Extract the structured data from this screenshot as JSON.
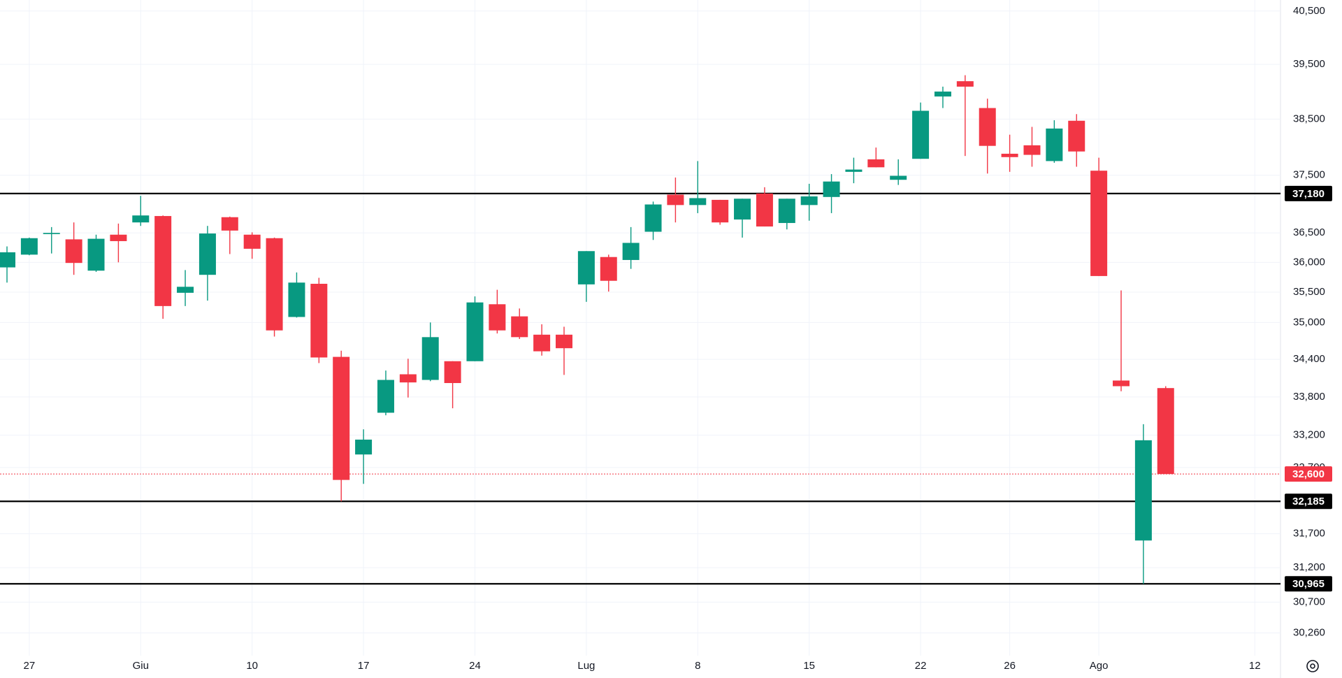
{
  "chart_data": {
    "type": "candlestick",
    "log_scale": true,
    "grid": true,
    "up_color": "#089981",
    "down_color": "#f23645",
    "categories": [
      null,
      "27",
      null,
      null,
      null,
      null,
      "Giu",
      null,
      null,
      null,
      null,
      "10",
      null,
      null,
      null,
      null,
      "17",
      null,
      null,
      null,
      null,
      "24",
      null,
      null,
      null,
      null,
      "Lug",
      null,
      null,
      null,
      null,
      "8",
      null,
      null,
      null,
      null,
      "15",
      null,
      null,
      null,
      null,
      "22",
      null,
      null,
      null,
      "26",
      null,
      null,
      null,
      "Ago",
      null,
      null,
      null,
      null,
      null,
      null,
      "12"
    ],
    "open": [
      35915,
      36130,
      36480,
      36390,
      35860,
      36470,
      36680,
      36790,
      35490,
      35790,
      36770,
      36470,
      36410,
      35090,
      35640,
      34440,
      32900,
      33550,
      34160,
      34070,
      34370,
      34370,
      35300,
      35100,
      34800,
      34800,
      35630,
      36090,
      36040,
      36520,
      37160,
      36980,
      37070,
      36730,
      37180,
      36670,
      36980,
      37120,
      37560,
      37780,
      37420,
      37790,
      38910,
      39190,
      38700,
      37880,
      38030,
      37750,
      38470,
      37580,
      34060,
      31600,
      33940,
      null,
      null,
      null,
      null
    ],
    "high": [
      36270,
      36420,
      36600,
      36680,
      36470,
      36660,
      37140,
      36800,
      35870,
      36620,
      36780,
      36510,
      36420,
      35830,
      35740,
      34540,
      33290,
      34220,
      34410,
      35000,
      34370,
      35430,
      35540,
      35230,
      34970,
      34930,
      36190,
      36130,
      36600,
      37040,
      37460,
      37750,
      37070,
      37090,
      37290,
      37090,
      37350,
      37520,
      37810,
      37990,
      37780,
      38800,
      39090,
      39300,
      38870,
      38220,
      38360,
      38480,
      38590,
      37810,
      35530,
      33370,
      33970,
      null,
      null,
      null,
      null
    ],
    "low": [
      35660,
      36120,
      36150,
      35790,
      35840,
      36000,
      36620,
      35060,
      35270,
      35360,
      36140,
      36060,
      34770,
      35080,
      34340,
      32185,
      32450,
      33510,
      33790,
      34050,
      33620,
      34370,
      34820,
      34730,
      34460,
      34150,
      35340,
      35510,
      35890,
      36380,
      36680,
      36840,
      36640,
      36420,
      36610,
      36560,
      36710,
      36840,
      37360,
      37640,
      37330,
      37790,
      38700,
      37840,
      37530,
      37560,
      37650,
      37720,
      37650,
      35770,
      33890,
      30965,
      32600,
      null,
      null,
      null,
      null
    ],
    "close": [
      36170,
      36410,
      36500,
      35990,
      36400,
      36360,
      36800,
      35270,
      35590,
      36490,
      36540,
      36230,
      34870,
      35660,
      34430,
      32510,
      33130,
      34070,
      34030,
      34760,
      34020,
      35330,
      34870,
      34760,
      34530,
      34580,
      36190,
      35690,
      36330,
      36990,
      36980,
      37100,
      36680,
      37090,
      36610,
      37090,
      37130,
      37390,
      37600,
      37640,
      37490,
      38650,
      39000,
      39090,
      38020,
      37820,
      37860,
      38330,
      37920,
      35770,
      33970,
      33120,
      32600,
      null,
      null,
      null,
      null
    ],
    "ylim": [
      29940,
      40710
    ],
    "yticks": [
      {
        "value": 40500,
        "label": "40,500"
      },
      {
        "value": 39500,
        "label": "39,500"
      },
      {
        "value": 38500,
        "label": "38,500"
      },
      {
        "value": 37500,
        "label": "37,500"
      },
      {
        "value": 36500,
        "label": "36,500"
      },
      {
        "value": 36000,
        "label": "36,000"
      },
      {
        "value": 35500,
        "label": "35,500"
      },
      {
        "value": 35000,
        "label": "35,000"
      },
      {
        "value": 34400,
        "label": "34,400"
      },
      {
        "value": 33800,
        "label": "33,800"
      },
      {
        "value": 33200,
        "label": "33,200"
      },
      {
        "value": 32700,
        "label": "32,700"
      },
      {
        "value": 31700,
        "label": "31,700"
      },
      {
        "value": 31200,
        "label": "31,200"
      },
      {
        "value": 30700,
        "label": "30,700"
      },
      {
        "value": 30260,
        "label": "30,260"
      }
    ],
    "hlines": [
      {
        "value": 37180,
        "label": "37,180",
        "color": "#000000",
        "style": "solid"
      },
      {
        "value": 32600,
        "label": "32,600",
        "color": "#f23645",
        "style": "dotted"
      },
      {
        "value": 32185,
        "label": "32,185",
        "color": "#000000",
        "style": "solid"
      },
      {
        "value": 30965,
        "label": "30,965",
        "color": "#000000",
        "style": "solid"
      }
    ]
  }
}
